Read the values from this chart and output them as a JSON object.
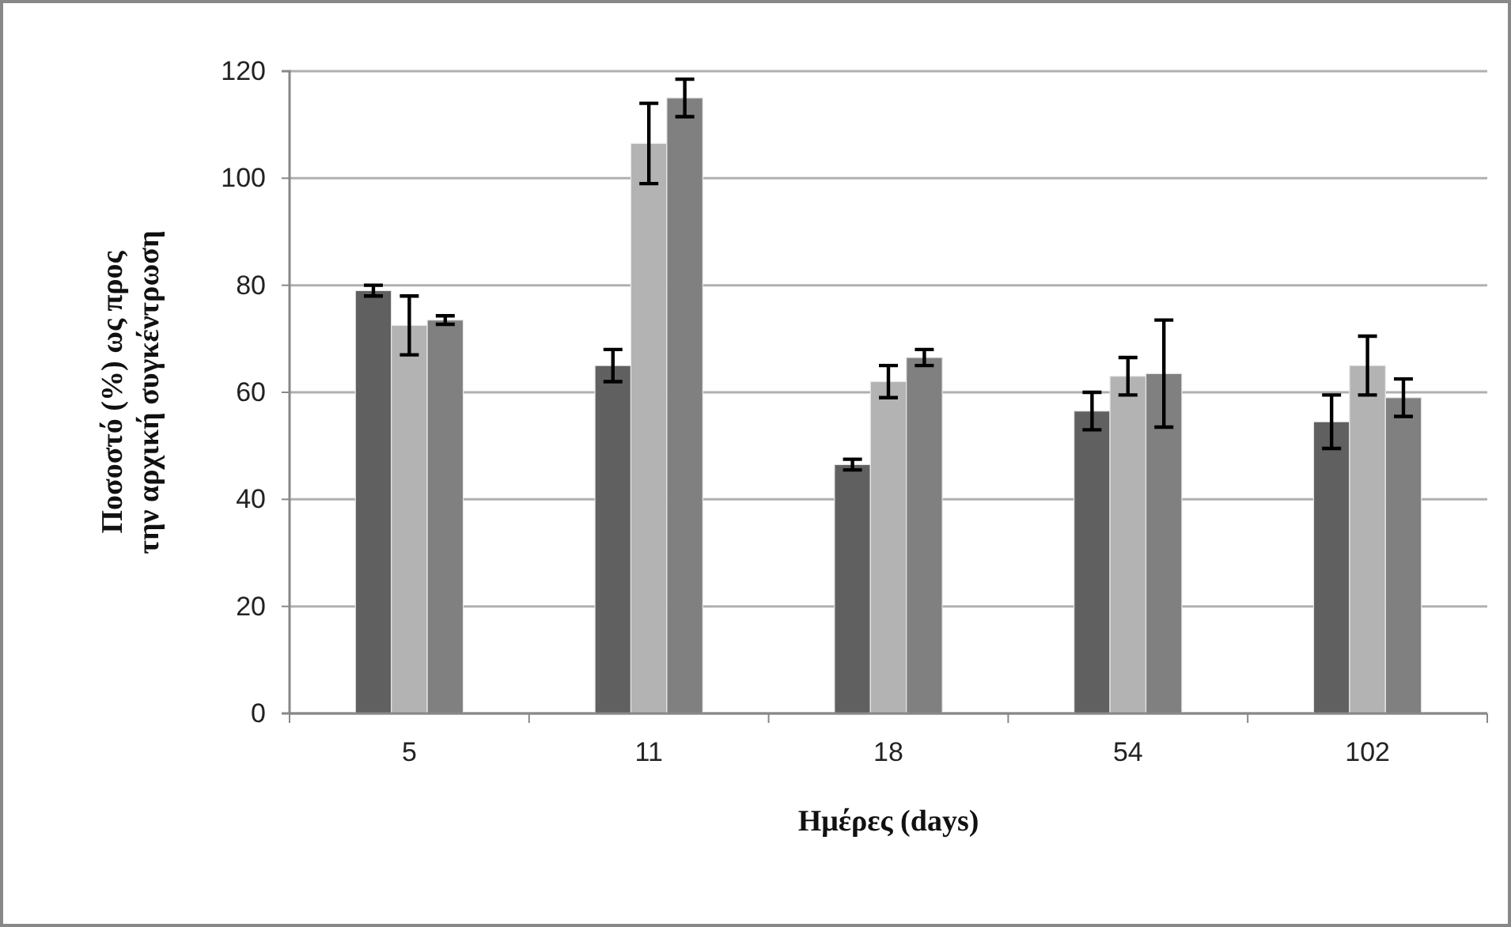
{
  "chart_data": {
    "type": "bar",
    "xlabel": "Ημέρες (days)",
    "ylabel": "Ποσοστό (%) ως προς\nτην αρχική συγκέντρωση",
    "categories": [
      "5",
      "11",
      "18",
      "54",
      "102"
    ],
    "series": [
      {
        "color": "#606060",
        "values": [
          79,
          65,
          46.5,
          56.5,
          54.5
        ],
        "errors": [
          1,
          3,
          1,
          3.5,
          5
        ]
      },
      {
        "color": "#b3b3b3",
        "values": [
          72.5,
          106.5,
          62,
          63,
          65
        ],
        "errors": [
          5.5,
          7.5,
          3,
          3.5,
          5.5
        ]
      },
      {
        "color": "#808080",
        "values": [
          73.5,
          115,
          66.5,
          63.5,
          59
        ],
        "errors": [
          0.8,
          3.5,
          1.5,
          10,
          3.5
        ]
      }
    ],
    "ylim": [
      0,
      120
    ],
    "yticks": [
      0,
      20,
      40,
      60,
      80,
      100,
      120
    ],
    "grid": "y"
  }
}
